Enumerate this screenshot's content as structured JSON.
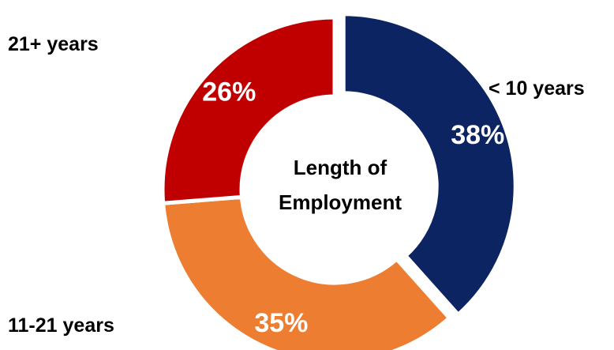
{
  "chart_data": {
    "type": "pie",
    "style": "donut",
    "center_label": [
      "Length of",
      "Employment"
    ],
    "slices": [
      {
        "label": "< 10 years",
        "value": 38,
        "value_label": "38%",
        "color": "#0c2461"
      },
      {
        "label": "11-21 years",
        "value": 35,
        "value_label": "35%",
        "color": "#ed7d31"
      },
      {
        "label": "21+ years",
        "value": 26,
        "value_label": "26%",
        "color": "#c00000"
      }
    ]
  }
}
